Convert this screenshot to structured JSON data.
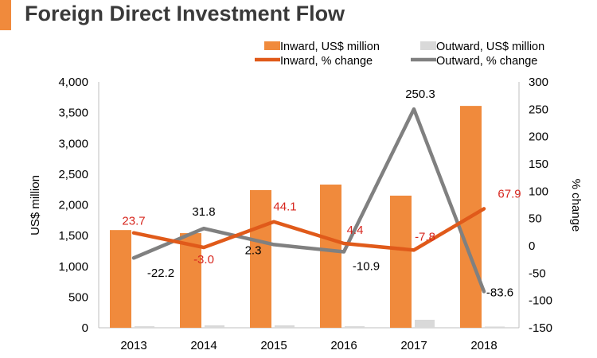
{
  "title": "Foreign Direct Investment Flow",
  "colors": {
    "accent": "#f08a3c",
    "inward_bar": "#f08a3c",
    "outward_bar": "#d9d9d9",
    "inward_line": "#e05a1a",
    "outward_line": "#808080",
    "inward_label": "#d7261e",
    "text": "#000000"
  },
  "chart_data": {
    "type": "bar",
    "title": "Foreign Direct Investment Flow",
    "categories": [
      "2013",
      "2014",
      "2015",
      "2016",
      "2017",
      "2018"
    ],
    "ylabel": "US$ million",
    "y2label": "% change",
    "ylim": [
      0,
      4000
    ],
    "y2lim": [
      -150,
      300
    ],
    "yticks": [
      "4,000",
      "3,500",
      "3,000",
      "2,500",
      "2,000",
      "1,500",
      "1,000",
      "500",
      "0"
    ],
    "y2ticks": [
      "300",
      "250",
      "200",
      "150",
      "100",
      "50",
      "0",
      "-50",
      "-100",
      "-150"
    ],
    "grid": false,
    "legend_position": "top-right",
    "series": [
      {
        "name": "Inward, US$ million",
        "kind": "bar",
        "axis": "left",
        "values": [
          1590,
          1540,
          2240,
          2330,
          2150,
          3610
        ]
      },
      {
        "name": "Outward, US$ million",
        "kind": "bar",
        "axis": "left",
        "values": [
          25,
          40,
          40,
          25,
          130,
          20
        ]
      },
      {
        "name": "Inward, % change",
        "kind": "line",
        "axis": "right",
        "values": [
          23.7,
          -3.0,
          44.1,
          4.4,
          -7.8,
          67.9
        ],
        "labels": [
          "23.7",
          "-3.0",
          "44.1",
          "4.4",
          "-7.8",
          "67.9"
        ]
      },
      {
        "name": "Outward, % change",
        "kind": "line",
        "axis": "right",
        "values": [
          -22.2,
          31.8,
          2.3,
          -10.9,
          250.3,
          -83.6
        ],
        "labels": [
          "-22.2",
          "31.8",
          "2.3",
          "-10.9",
          "250.3",
          "-83.6"
        ]
      }
    ]
  }
}
